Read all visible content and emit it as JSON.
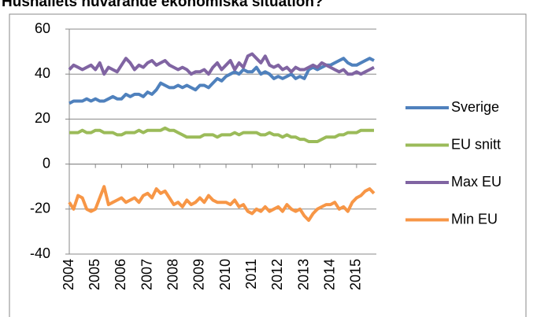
{
  "chart_data": {
    "type": "line",
    "title": "Hushållets nuvarande ekonomiska situation?",
    "categories": [
      "2004",
      null,
      null,
      null,
      null,
      null,
      "2005",
      null,
      null,
      null,
      null,
      null,
      "2006",
      null,
      null,
      null,
      null,
      null,
      "2007",
      null,
      null,
      null,
      null,
      null,
      "2008",
      null,
      null,
      null,
      null,
      null,
      "2009",
      null,
      null,
      null,
      null,
      null,
      "2010",
      null,
      null,
      null,
      null,
      null,
      "2011",
      null,
      null,
      null,
      null,
      null,
      "2012",
      null,
      null,
      null,
      null,
      null,
      "2013",
      null,
      null,
      null,
      null,
      null,
      "2014",
      null,
      null,
      null,
      null,
      null,
      "2015",
      null,
      null,
      null,
      null
    ],
    "series": [
      {
        "name": "Sverige",
        "color": "#4f81bd",
        "values": [
          27,
          28,
          28,
          28,
          29,
          28,
          29,
          28,
          28,
          29,
          30,
          29,
          29,
          31,
          30,
          31,
          31,
          30,
          32,
          31,
          33,
          36,
          35,
          34,
          34,
          35,
          34,
          35,
          34,
          33,
          35,
          35,
          34,
          36,
          38,
          37,
          39,
          40,
          41,
          40,
          42,
          41,
          41,
          43,
          40,
          41,
          40,
          38,
          39,
          38,
          39,
          40,
          38,
          39,
          38,
          42,
          43,
          42,
          43,
          44,
          44,
          45,
          46,
          47,
          45,
          44,
          44,
          45,
          46,
          47,
          46
        ]
      },
      {
        "name": "EU snitt",
        "color": "#9bbb59",
        "values": [
          14,
          14,
          14,
          15,
          14,
          14,
          15,
          15,
          14,
          14,
          14,
          13,
          13,
          14,
          14,
          14,
          15,
          14,
          15,
          15,
          15,
          15,
          16,
          15,
          15,
          14,
          13,
          12,
          12,
          12,
          12,
          13,
          13,
          13,
          12,
          13,
          13,
          13,
          14,
          13,
          14,
          14,
          14,
          14,
          13,
          13,
          14,
          13,
          13,
          12,
          13,
          12,
          12,
          11,
          11,
          10,
          10,
          10,
          11,
          12,
          12,
          12,
          13,
          13,
          14,
          14,
          14,
          15,
          15,
          15,
          15
        ]
      },
      {
        "name": "Max EU",
        "color": "#8064a2",
        "values": [
          42,
          44,
          43,
          42,
          43,
          44,
          42,
          45,
          40,
          43,
          42,
          41,
          44,
          47,
          45,
          42,
          44,
          43,
          45,
          46,
          44,
          45,
          46,
          44,
          43,
          42,
          43,
          42,
          40,
          41,
          41,
          42,
          40,
          43,
          45,
          42,
          44,
          46,
          42,
          45,
          43,
          48,
          49,
          47,
          45,
          48,
          44,
          43,
          44,
          42,
          43,
          41,
          43,
          42,
          42,
          43,
          44,
          43,
          45,
          44,
          43,
          42,
          41,
          42,
          40,
          40,
          41,
          40,
          41,
          42,
          43
        ]
      },
      {
        "name": "Min EU",
        "color": "#f79646",
        "values": [
          -17,
          -20,
          -14,
          -15,
          -20,
          -21,
          -20,
          -15,
          -10,
          -18,
          -17,
          -16,
          -15,
          -17,
          -16,
          -15,
          -17,
          -14,
          -13,
          -15,
          -11,
          -13,
          -12,
          -15,
          -18,
          -17,
          -19,
          -16,
          -18,
          -17,
          -15,
          -17,
          -14,
          -16,
          -17,
          -17,
          -17,
          -18,
          -16,
          -19,
          -18,
          -21,
          -22,
          -20,
          -21,
          -19,
          -21,
          -20,
          -19,
          -21,
          -18,
          -20,
          -21,
          -20,
          -23,
          -25,
          -22,
          -20,
          -19,
          -18,
          -18,
          -17,
          -20,
          -19,
          -21,
          -17,
          -15,
          -14,
          -12,
          -11,
          -13
        ]
      }
    ],
    "ylim": [
      -40,
      60
    ],
    "yticks": [
      -40,
      -20,
      0,
      20,
      40,
      60
    ],
    "grid": true,
    "legend": "right"
  }
}
